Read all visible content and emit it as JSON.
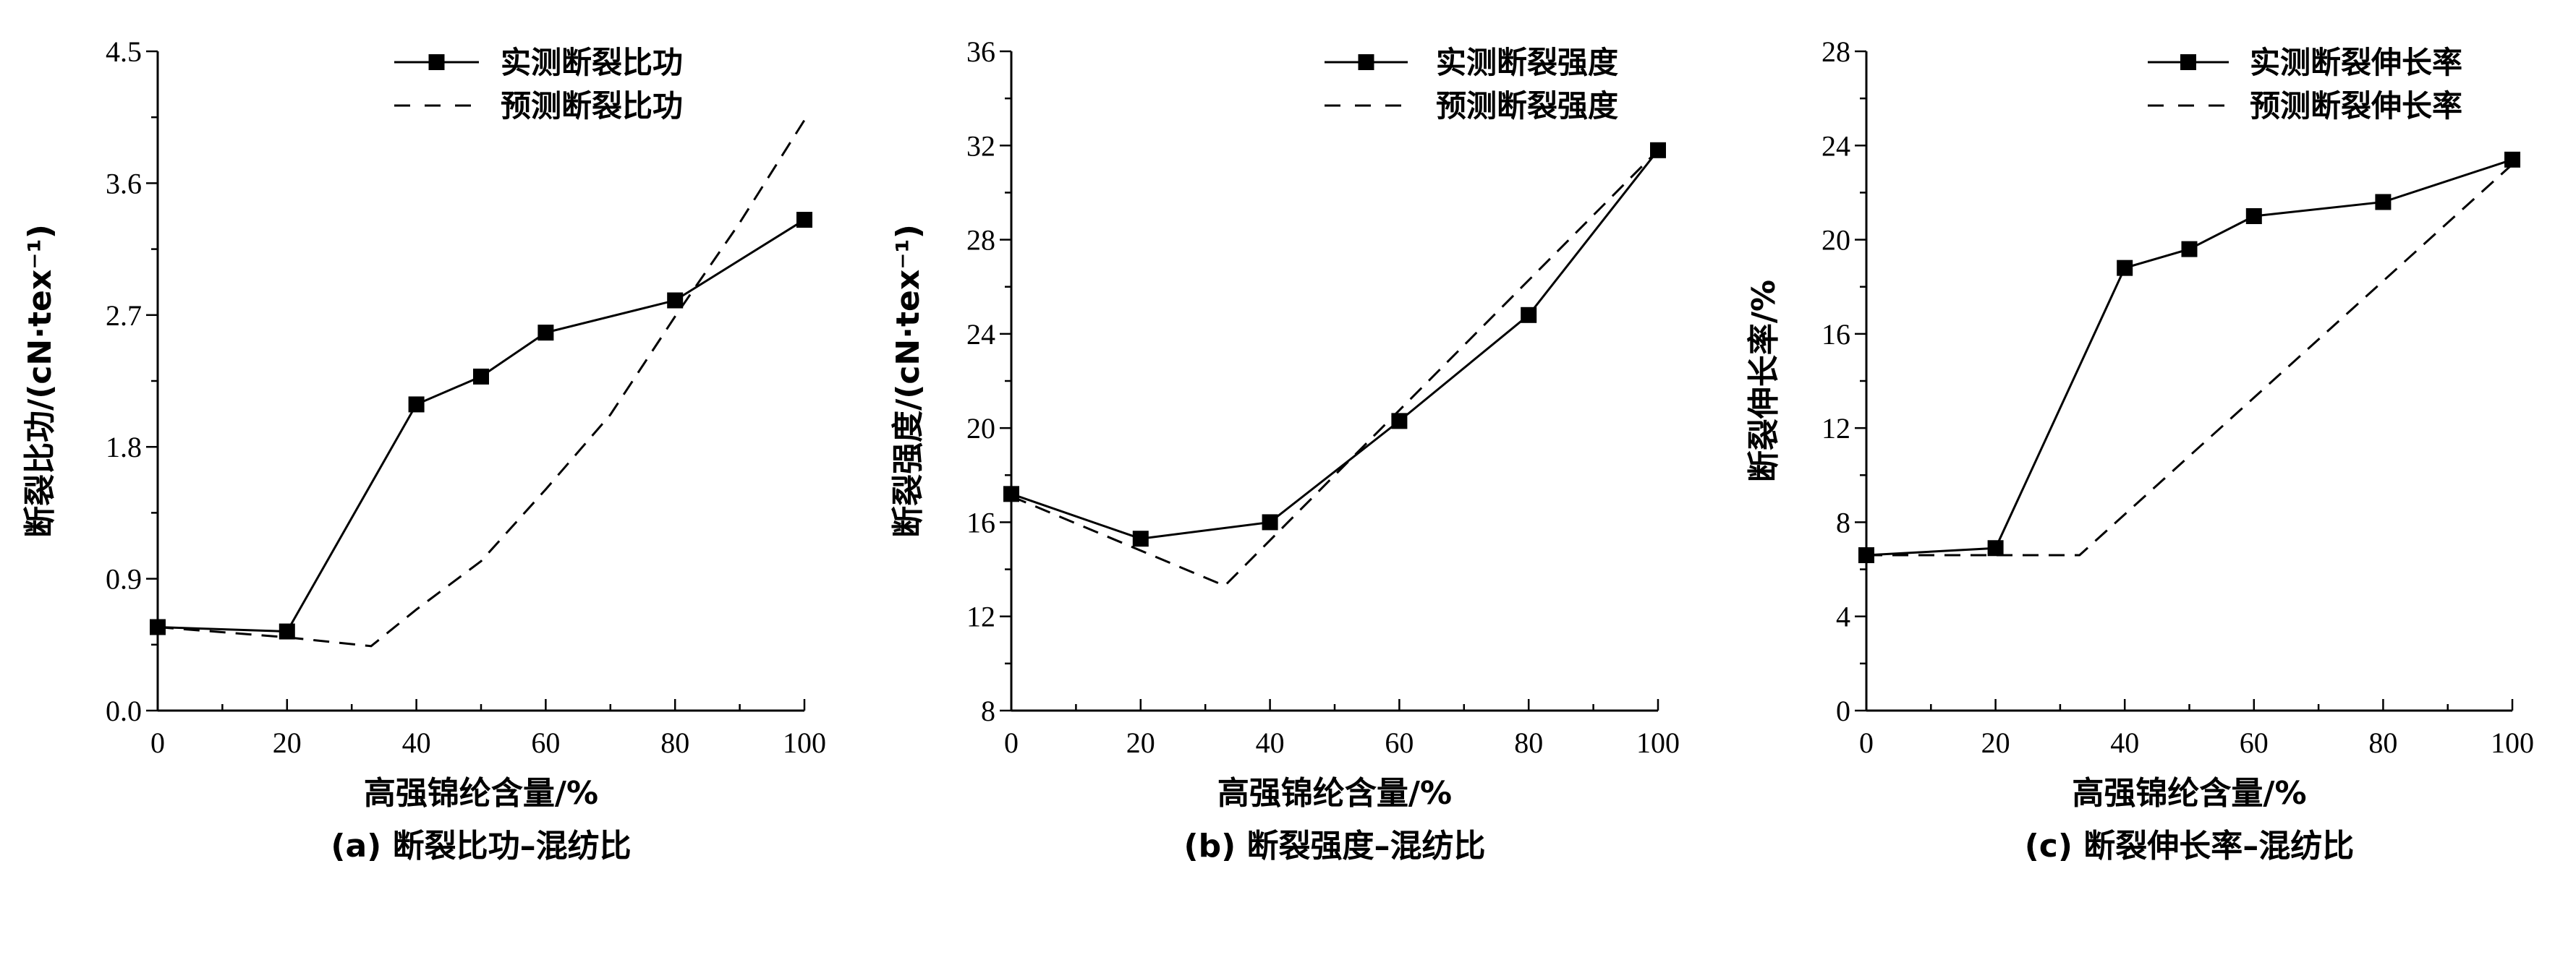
{
  "chart_data": [
    {
      "type": "line",
      "caption": "(a) 断裂比功–混纺比",
      "xlabel": "高强锦纶含量/%",
      "ylabel": "断裂比功/(cN·tex⁻¹)",
      "xlim": [
        0,
        100
      ],
      "ylim": [
        0,
        4.5
      ],
      "xticks": [
        "0",
        "20",
        "40",
        "60",
        "80",
        "100"
      ],
      "yticks": [
        "0.0",
        "0.9",
        "1.8",
        "2.7",
        "3.6",
        "4.5"
      ],
      "legend_position": "top-right",
      "series": [
        {
          "name": "实测断裂比功",
          "style": "solid-square",
          "x": [
            0,
            20,
            40,
            50,
            60,
            80,
            100
          ],
          "y": [
            0.57,
            0.54,
            2.09,
            2.28,
            2.58,
            2.8,
            3.35
          ]
        },
        {
          "name": "预测断裂比功",
          "style": "dashed",
          "x": [
            0,
            20,
            33,
            40,
            50,
            60,
            70,
            80,
            90,
            100
          ],
          "y": [
            0.57,
            0.5,
            0.44,
            0.69,
            1.02,
            1.51,
            2.02,
            2.69,
            3.33,
            4.03
          ]
        }
      ]
    },
    {
      "type": "line",
      "caption": "(b) 断裂强度–混纺比",
      "xlabel": "高强锦纶含量/%",
      "ylabel": "断裂强度/(cN·tex⁻¹)",
      "xlim": [
        0,
        100
      ],
      "ylim": [
        8,
        36
      ],
      "xticks": [
        "0",
        "20",
        "40",
        "60",
        "80",
        "100"
      ],
      "yticks": [
        "8",
        "12",
        "16",
        "20",
        "24",
        "28",
        "32",
        "36"
      ],
      "legend_position": "top-right",
      "series": [
        {
          "name": "实测断裂强度",
          "style": "solid-square",
          "x": [
            0,
            20,
            40,
            60,
            80,
            100
          ],
          "y": [
            17.2,
            15.3,
            16.0,
            20.3,
            24.8,
            31.8
          ]
        },
        {
          "name": "预测断裂强度",
          "style": "dashed",
          "x": [
            0,
            33,
            100
          ],
          "y": [
            17.1,
            13.3,
            31.8
          ]
        }
      ]
    },
    {
      "type": "line",
      "caption": "(c) 断裂伸长率–混纺比",
      "xlabel": "高强锦纶含量/%",
      "ylabel": "断裂伸长率/%",
      "xlim": [
        0,
        100
      ],
      "ylim": [
        0,
        28
      ],
      "xticks": [
        "0",
        "20",
        "40",
        "60",
        "80",
        "100"
      ],
      "yticks": [
        "0",
        "4",
        "8",
        "12",
        "16",
        "20",
        "24",
        "28"
      ],
      "legend_position": "top-right",
      "series": [
        {
          "name": "实测断裂伸长率",
          "style": "solid-square",
          "x": [
            0,
            20,
            40,
            50,
            60,
            80,
            100
          ],
          "y": [
            6.6,
            6.9,
            18.8,
            19.6,
            21.0,
            21.6,
            23.4
          ]
        },
        {
          "name": "预测断裂伸长率",
          "style": "dashed",
          "x": [
            0,
            33,
            100
          ],
          "y": [
            6.6,
            6.6,
            23.2
          ]
        }
      ]
    }
  ]
}
